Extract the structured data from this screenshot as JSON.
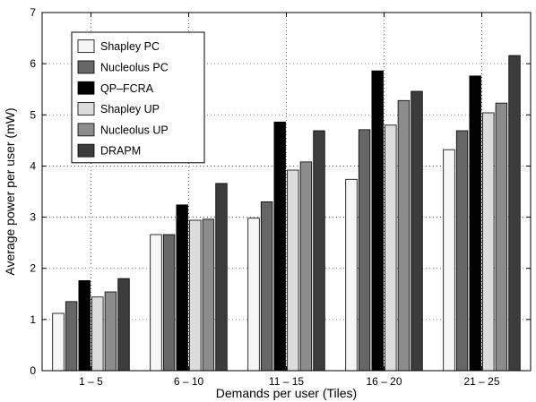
{
  "chart_data": {
    "type": "bar",
    "xlabel": "Demands per user (Tiles)",
    "ylabel": "Average power per user (mW)",
    "categories": [
      "1 – 5",
      "6 – 10",
      "11 – 15",
      "16 – 20",
      "21 – 25"
    ],
    "ylim": [
      0,
      7
    ],
    "yticks": [
      0,
      1,
      2,
      3,
      4,
      5,
      6,
      7
    ],
    "grid": true,
    "legend_position": "top-left",
    "series": [
      {
        "name": "Shapley PC",
        "color": "#f6f6f6",
        "values": [
          1.12,
          2.66,
          2.98,
          3.74,
          4.32
        ]
      },
      {
        "name": "Nucleolus PC",
        "color": "#666666",
        "values": [
          1.35,
          2.66,
          3.3,
          4.71,
          4.69
        ]
      },
      {
        "name": "QP–FCRA",
        "color": "#000000",
        "values": [
          1.76,
          3.24,
          4.86,
          5.86,
          5.76
        ]
      },
      {
        "name": "Shapley UP",
        "color": "#dcdcdc",
        "values": [
          1.44,
          2.94,
          3.92,
          4.8,
          5.04
        ]
      },
      {
        "name": "Nucleolus UP",
        "color": "#8c8c8c",
        "values": [
          1.54,
          2.96,
          4.08,
          5.28,
          5.23
        ]
      },
      {
        "name": "DRAPM",
        "color": "#3c3c3c",
        "values": [
          1.8,
          3.66,
          4.69,
          5.46,
          6.16
        ]
      }
    ]
  }
}
